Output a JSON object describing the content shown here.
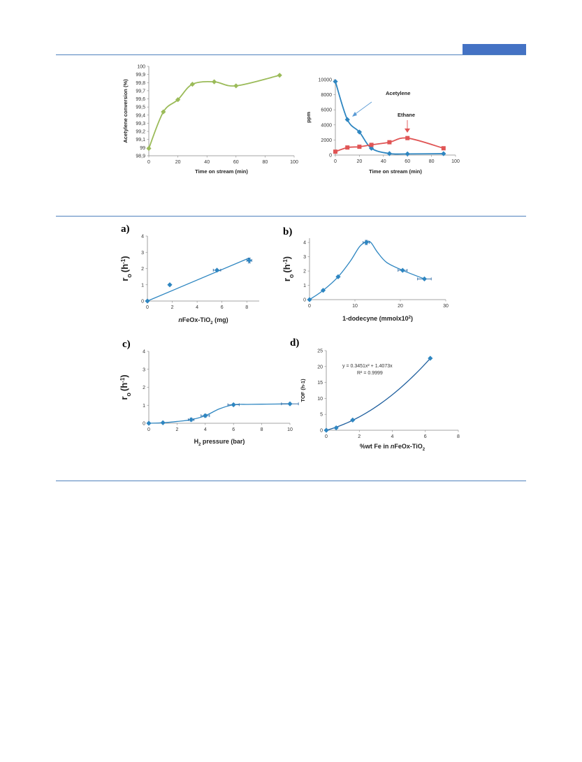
{
  "colors": {
    "rule": "#4f81bd",
    "tab": "#4472c4",
    "green": "#9bbb59",
    "blue": "#2e86c1",
    "red": "#e05555",
    "acetylene_label": "#2e75b6",
    "ethane_label": "#e83030"
  },
  "chart_data": [
    {
      "id": "conv",
      "type": "line",
      "xlabel": "Time on stream (min)",
      "ylabel": "Acetylene conversion (%)",
      "xlim": [
        0,
        100
      ],
      "ylim": [
        98.9,
        100
      ],
      "xticks": [
        "0",
        "20",
        "40",
        "60",
        "80",
        "100"
      ],
      "yticks": [
        "98,9",
        "99",
        "99,1",
        "99,2",
        "99,3",
        "99,4",
        "99,5",
        "99,6",
        "99,7",
        "99,8",
        "99,9",
        "100"
      ],
      "series": [
        {
          "color": "#9bbb59",
          "marker": "diamond",
          "x": [
            0,
            10,
            20,
            30,
            45,
            60,
            90
          ],
          "y": [
            98.99,
            99.44,
            99.59,
            99.78,
            99.81,
            99.76,
            99.89
          ]
        }
      ]
    },
    {
      "id": "ppm",
      "type": "line",
      "xlabel": "Time on stream (min)",
      "ylabel": "ppm",
      "xlim": [
        0,
        100
      ],
      "ylim": [
        0,
        10000
      ],
      "xticks": [
        "0",
        "20",
        "40",
        "60",
        "80",
        "100"
      ],
      "yticks": [
        "0",
        "2000",
        "4000",
        "6000",
        "8000",
        "10000"
      ],
      "annotations": [
        "Acetylene",
        "Ethane"
      ],
      "series": [
        {
          "name": "Acetylene",
          "color": "#2e86c1",
          "marker": "diamond",
          "x": [
            0,
            10,
            20,
            30,
            45,
            60,
            90
          ],
          "y": [
            9750,
            4700,
            3050,
            900,
            200,
            150,
            180
          ]
        },
        {
          "name": "Ethane",
          "color": "#e05555",
          "marker": "square",
          "x": [
            0,
            10,
            20,
            30,
            45,
            60,
            90
          ],
          "y": [
            450,
            1000,
            1100,
            1350,
            1700,
            2250,
            900
          ]
        }
      ]
    },
    {
      "id": "a",
      "type": "scatter",
      "panel_label": "a)",
      "xlabel": "nFeOx-TiO2 (mg)",
      "ylabel": "ro (h-1)",
      "xlim": [
        0,
        9
      ],
      "ylim": [
        0,
        4
      ],
      "xticks": [
        "0",
        "2",
        "4",
        "6",
        "8"
      ],
      "yticks": [
        "0",
        "1",
        "2",
        "3",
        "4"
      ],
      "series": [
        {
          "color": "#2e86c1",
          "marker": "diamond",
          "x": [
            0,
            1.8,
            5.6,
            8.2
          ],
          "y": [
            0,
            1.0,
            1.9,
            2.5
          ],
          "xerr": [
            0,
            0,
            0.3,
            0.2
          ],
          "yerr": [
            0,
            0,
            0,
            0.15
          ]
        }
      ],
      "fit_line": {
        "x": [
          0,
          8.2
        ],
        "y": [
          0,
          2.65
        ]
      }
    },
    {
      "id": "b",
      "type": "scatter",
      "panel_label": "b)",
      "xlabel": "1-dodecyne (mmolx102)",
      "ylabel": "ro (h-1)",
      "xlim": [
        0,
        30
      ],
      "ylim": [
        0,
        4.3
      ],
      "xticks": [
        "0",
        "10",
        "20",
        "30"
      ],
      "yticks": [
        "0",
        "1",
        "2",
        "3",
        "4"
      ],
      "series": [
        {
          "color": "#2e86c1",
          "marker": "diamond",
          "x": [
            0,
            3,
            6.3,
            12.5,
            20.5,
            25.3
          ],
          "y": [
            0,
            0.65,
            1.6,
            4.0,
            2.05,
            1.45
          ],
          "xerr": [
            0,
            0,
            0,
            0.7,
            1.0,
            1.5
          ],
          "yerr": [
            0,
            0,
            0,
            0.15,
            0,
            0
          ]
        }
      ],
      "fit_curve": {
        "x": [
          0,
          3,
          6.3,
          9,
          11,
          12.5,
          13.5,
          15,
          17,
          20.5,
          25.3
        ],
        "y": [
          0,
          0.65,
          1.6,
          2.7,
          3.7,
          4.05,
          4.0,
          3.3,
          2.6,
          2.05,
          1.45
        ]
      }
    },
    {
      "id": "c",
      "type": "scatter",
      "panel_label": "c)",
      "xlabel": "H2 pressure (bar)",
      "ylabel": "ro (h-1)",
      "xlim": [
        0,
        10
      ],
      "ylim": [
        0,
        4
      ],
      "xticks": [
        "0",
        "2",
        "4",
        "6",
        "8",
        "10"
      ],
      "yticks": [
        "0",
        "1",
        "2",
        "3",
        "4"
      ],
      "series": [
        {
          "color": "#2e86c1",
          "marker": "diamond",
          "x": [
            0,
            1,
            3,
            4,
            6,
            10
          ],
          "y": [
            0,
            0.03,
            0.2,
            0.42,
            1.03,
            1.08
          ],
          "xerr": [
            0,
            0,
            0.2,
            0.3,
            0.4,
            0.6
          ],
          "yerr": [
            0,
            0,
            0.08,
            0.08,
            0.05,
            0
          ]
        }
      ],
      "fit_curve": {
        "x": [
          0,
          1,
          2,
          3,
          4,
          5,
          6,
          7,
          8,
          10
        ],
        "y": [
          0,
          0.03,
          0.1,
          0.2,
          0.42,
          0.8,
          1.03,
          1.05,
          1.06,
          1.08
        ]
      }
    },
    {
      "id": "d",
      "type": "scatter",
      "panel_label": "d)",
      "xlabel": "%wt Fe in nFeOx-TiO2",
      "ylabel": "TOF (h-1)",
      "xlim": [
        0,
        8
      ],
      "ylim": [
        0,
        25
      ],
      "xticks": [
        "0",
        "2",
        "4",
        "6",
        "8"
      ],
      "yticks": [
        "0",
        "5",
        "10",
        "15",
        "20",
        "25"
      ],
      "equation": "y = 0.3451x² + 1.4073x",
      "r_squared": "R² = 0.9999",
      "series": [
        {
          "color": "#2e86c1",
          "marker": "diamond",
          "x": [
            0,
            0.6,
            1.6,
            6.3
          ],
          "y": [
            0,
            0.75,
            3.2,
            22.6
          ]
        }
      ],
      "fit_poly": [
        0.3451,
        1.4073,
        0
      ],
      "fit_range": [
        0,
        6.3
      ]
    }
  ]
}
